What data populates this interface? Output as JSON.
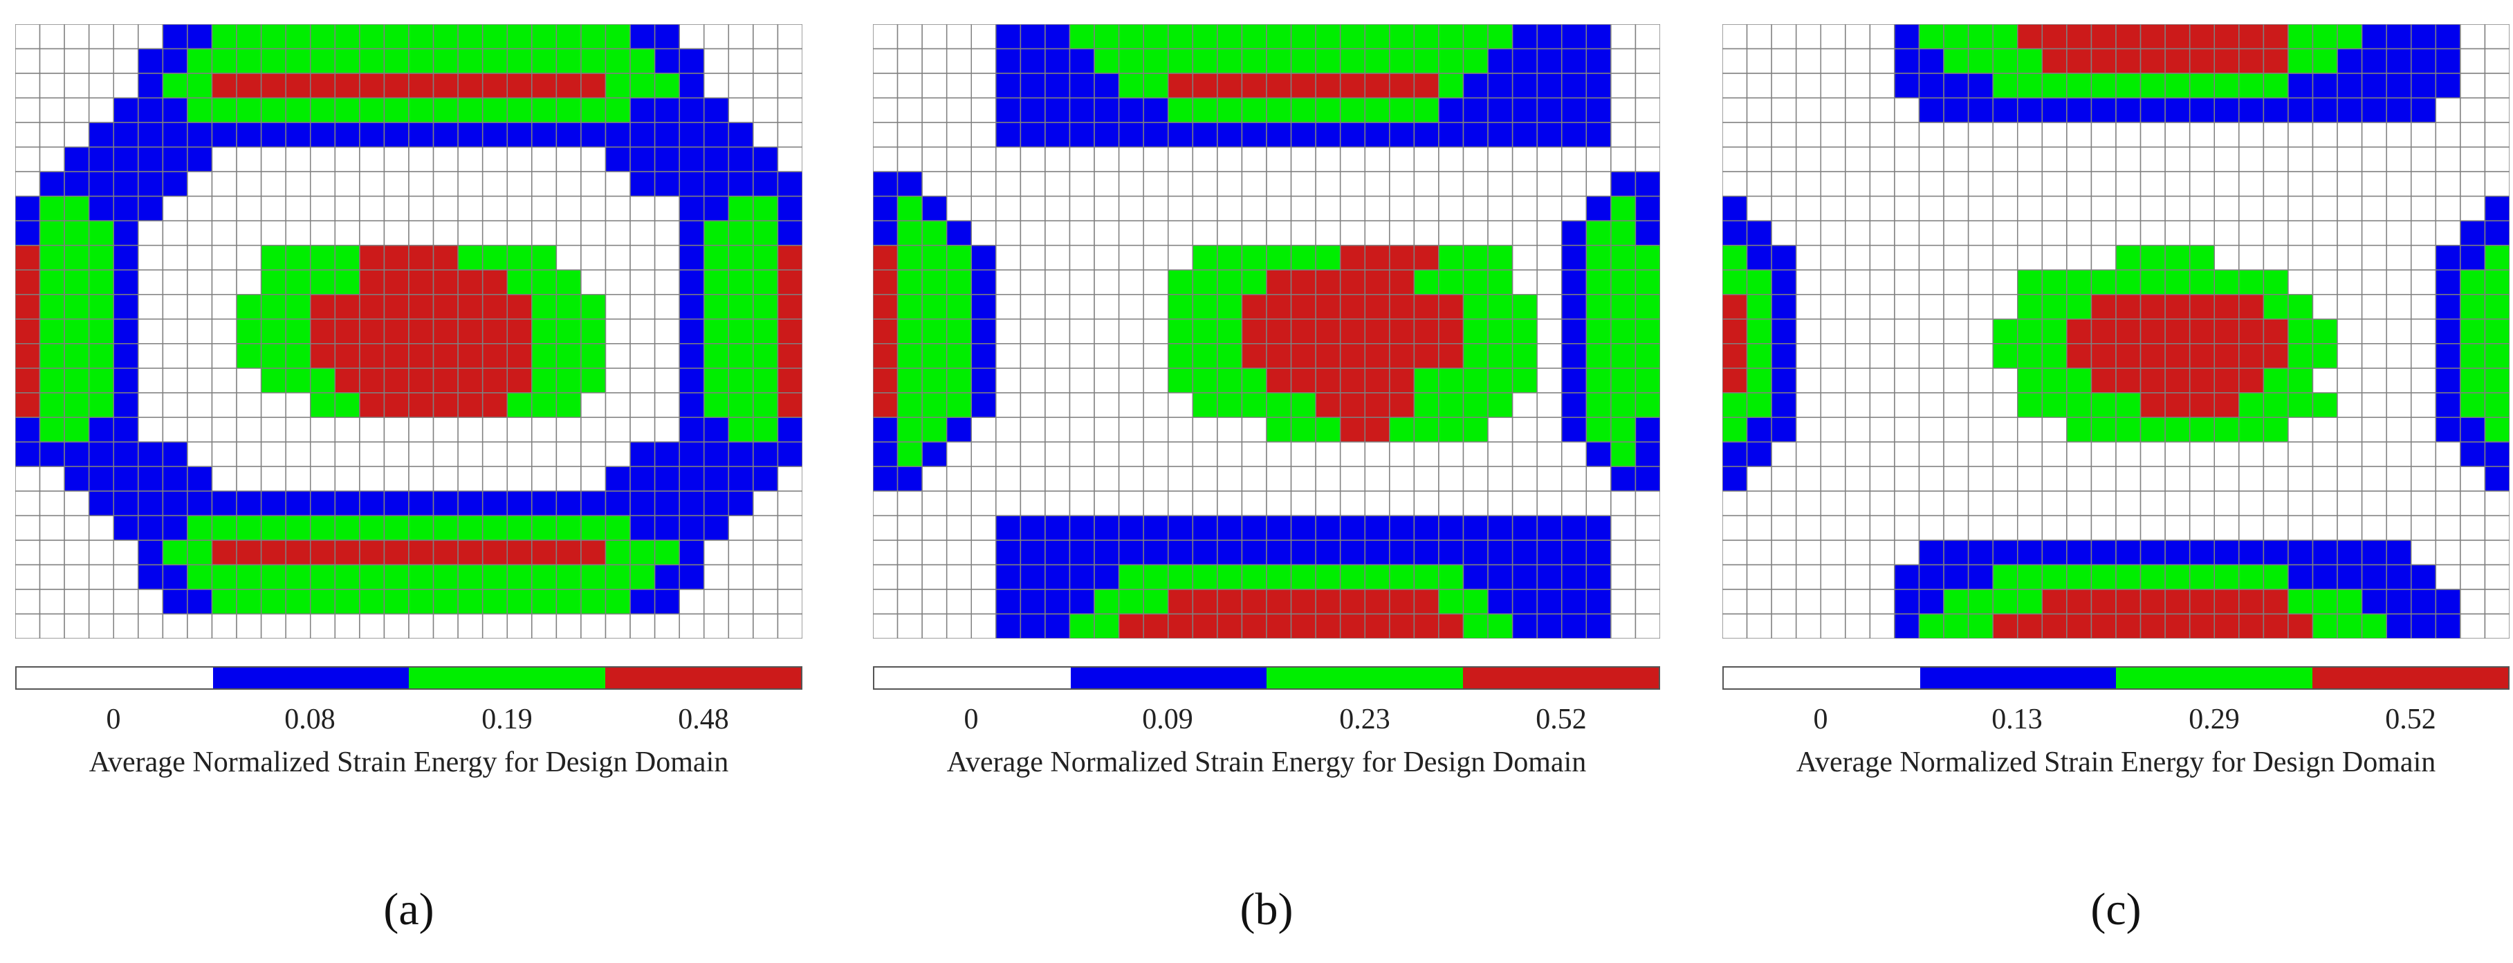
{
  "colors": {
    "level0": "#ffffff",
    "level1": "#0000ee",
    "level2": "#00ee00",
    "level3": "#cc1a1a",
    "grid": "#808080"
  },
  "chart_data": [
    {
      "type": "heatmap",
      "panel_label": "(a)",
      "colorbar_ticks": [
        "0",
        "0.08",
        "0.19",
        "0.48"
      ],
      "colorbar_title": "Average Normalized Strain Energy for Design Domain",
      "grid_cols": 32,
      "grid_rows": 25,
      "legend": "bottom",
      "rows": [
        "00000011222222222222222221100000",
        "00000112222222222222222222110000",
        "00000122333333333333333322210000",
        "00001112222222222222222221111000",
        "00011111111111111111111111111100",
        "00111111000000000000000011111110",
        "01111110000000000000000001111111",
        "12211100000000000000000000011221",
        "12221000000000000000000000012221",
        "32221000002222333322220000012223",
        "32221000002222333333222000012223",
        "32221000022233333333322200012223",
        "32221000022233333333322200012223",
        "32221000022233333333322200012223",
        "32221000002223333333322200012223",
        "32221000000022333333222000012223",
        "12211000000000000000000000011221",
        "11111110000000000000000001111111",
        "00111111000000000000000011111110",
        "00011111111111111111111111111100",
        "00001112222222222222222221111000",
        "00000122333333333333333322210000",
        "00000112222222222222222222110000",
        "00000011222222222222222221100000",
        "00000000000000000000000000000000"
      ]
    },
    {
      "type": "heatmap",
      "panel_label": "(b)",
      "colorbar_ticks": [
        "0",
        "0.09",
        "0.23",
        "0.52"
      ],
      "colorbar_title": "Average Normalized Strain Energy for Design Domain",
      "grid_cols": 32,
      "grid_rows": 25,
      "legend": "bottom",
      "rows": [
        "00000111222222222222222222111100",
        "00000111122222222222222221111100",
        "00000111112233333333333211111100",
        "00000111111122222222222111111100",
        "00000111111111111111111111111100",
        "00000000000000000000000000000000",
        "11000000000000000000000000000011",
        "12100000000000000000000000000121",
        "12210000000000000000000000001221",
        "32221000000002222223333222001222",
        "32221000000022223333332222001222",
        "32221000000022233333333322201222",
        "32221000000022233333333322201222",
        "32221000000022233333333322201222",
        "32221000000022223333332222201222",
        "32221000000002222233332222001222",
        "12210000000000002223322220001221",
        "12100000000000000000000000000121",
        "11000000000000000000000000000011",
        "00000000000000000000000000000000",
        "00000111111111111111111111111100",
        "00000111111111111111111111111100",
        "00000111112222222222222211111100",
        "00000111122233333333333221111100",
        "00000111223333333333333322111100"
      ]
    },
    {
      "type": "heatmap",
      "panel_label": "(c)",
      "colorbar_ticks": [
        "0",
        "0.13",
        "0.29",
        "0.52"
      ],
      "colorbar_title": "Average Normalized Strain Energy for Design Domain",
      "grid_cols": 32,
      "grid_rows": 25,
      "legend": "bottom",
      "rows": [
        "00000001222233333333333222111100",
        "00000001122223333333333221111100",
        "00000001111222222222222111111100",
        "00000000111111111111111111111000",
        "00000000000000000000000000000000",
        "00000000000000000000000000000000",
        "00000000000000000000000000000000",
        "10000000000000000000000000000001",
        "11000000000000000000000000000011",
        "21100000000000002222000000000112",
        "22100000000022222222222000000122",
        "32100000000022233333332200000122",
        "32100000000222333333333220000122",
        "32100000000222333333333220000122",
        "32100000000022233333332200000122",
        "22100000000022222333322220000122",
        "21100000000000222222222000000112",
        "11000000000000000000000000000011",
        "10000000000000000000000000000001",
        "00000000000000000000000000000000",
        "00000000000000000000000000000000",
        "00000000111111111111111111110000",
        "00000001111222222222222111111000",
        "00000001122223333333333222111100",
        "00000001222333333333333322211100"
      ]
    }
  ]
}
